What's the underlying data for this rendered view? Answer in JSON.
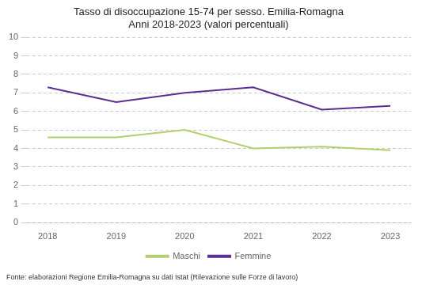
{
  "chart_data": {
    "type": "line",
    "title": "Tasso di disoccupazione 15-74 per sesso. Emilia-Romagna\nAnni 2018-2023 (valori percentuali)",
    "footnote": "Fonte: elaborazioni Regione Emilia-Romagna su dati Istat (Rilevazione sulle Forze di lavoro)",
    "x": [
      2018,
      2019,
      2020,
      2021,
      2022,
      2023
    ],
    "series": [
      {
        "name": "Maschi",
        "color": "#b2d06e",
        "values": [
          4.6,
          4.6,
          5.0,
          4.0,
          4.1,
          3.9
        ]
      },
      {
        "name": "Femmine",
        "color": "#5b2d8e",
        "values": [
          7.3,
          6.5,
          7.0,
          7.3,
          6.1,
          6.3
        ]
      }
    ],
    "xlim": [
      2017.7,
      2023.3
    ],
    "xticks": [
      2018,
      2019,
      2020,
      2021,
      2022,
      2023
    ],
    "ylim": [
      0,
      10
    ],
    "yticks": [
      0,
      1,
      2,
      3,
      4,
      5,
      6,
      7,
      8,
      9,
      10
    ],
    "grid": true,
    "legend": "bottom"
  }
}
